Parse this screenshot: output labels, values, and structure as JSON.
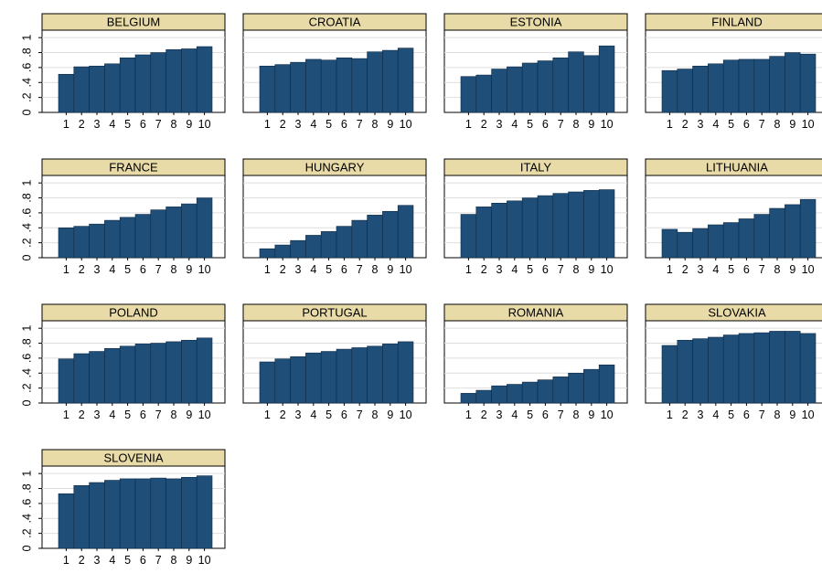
{
  "chart_data": {
    "type": "bar",
    "layout": "small-multiples grid, 4 columns",
    "categories": [
      "1",
      "2",
      "3",
      "4",
      "5",
      "6",
      "7",
      "8",
      "9",
      "10"
    ],
    "ylim": [
      0,
      1.1
    ],
    "yticks": [
      0,
      0.2,
      0.4,
      0.6,
      0.8,
      1
    ],
    "ytick_labels": [
      "0",
      ".2",
      ".4",
      ".6",
      ".8",
      "1"
    ],
    "grid": true,
    "colors": {
      "bar": "#1f4e79",
      "bar_edge": "#0e2a45",
      "panel_header": "#e8dba8",
      "grid": "#dedede"
    },
    "panels": [
      {
        "title": "BELGIUM",
        "values": [
          0.51,
          0.61,
          0.62,
          0.65,
          0.73,
          0.77,
          0.8,
          0.84,
          0.85,
          0.88
        ]
      },
      {
        "title": "CROATIA",
        "values": [
          0.62,
          0.64,
          0.67,
          0.71,
          0.7,
          0.73,
          0.72,
          0.81,
          0.83,
          0.86
        ]
      },
      {
        "title": "ESTONIA",
        "values": [
          0.48,
          0.5,
          0.58,
          0.61,
          0.66,
          0.69,
          0.73,
          0.81,
          0.76,
          0.89
        ]
      },
      {
        "title": "FINLAND",
        "values": [
          0.56,
          0.58,
          0.62,
          0.65,
          0.7,
          0.71,
          0.71,
          0.75,
          0.8,
          0.78
        ]
      },
      {
        "title": "FRANCE",
        "values": [
          0.4,
          0.42,
          0.45,
          0.5,
          0.54,
          0.58,
          0.64,
          0.68,
          0.72,
          0.8
        ]
      },
      {
        "title": "HUNGARY",
        "values": [
          0.12,
          0.17,
          0.23,
          0.3,
          0.35,
          0.42,
          0.5,
          0.57,
          0.62,
          0.7
        ]
      },
      {
        "title": "ITALY",
        "values": [
          0.58,
          0.68,
          0.73,
          0.76,
          0.8,
          0.83,
          0.86,
          0.88,
          0.9,
          0.91
        ]
      },
      {
        "title": "LITHUANIA",
        "values": [
          0.38,
          0.34,
          0.39,
          0.44,
          0.47,
          0.52,
          0.58,
          0.66,
          0.71,
          0.78
        ]
      },
      {
        "title": "POLAND",
        "values": [
          0.59,
          0.66,
          0.69,
          0.73,
          0.76,
          0.79,
          0.8,
          0.82,
          0.84,
          0.87
        ]
      },
      {
        "title": "PORTUGAL",
        "values": [
          0.55,
          0.59,
          0.62,
          0.67,
          0.69,
          0.72,
          0.74,
          0.76,
          0.79,
          0.82
        ]
      },
      {
        "title": "ROMANIA",
        "values": [
          0.13,
          0.17,
          0.23,
          0.25,
          0.28,
          0.31,
          0.35,
          0.4,
          0.45,
          0.51
        ]
      },
      {
        "title": "SLOVAKIA",
        "values": [
          0.77,
          0.84,
          0.86,
          0.88,
          0.91,
          0.93,
          0.94,
          0.96,
          0.96,
          0.93
        ]
      },
      {
        "title": "SLOVENIA",
        "values": [
          0.73,
          0.84,
          0.88,
          0.91,
          0.93,
          0.93,
          0.94,
          0.93,
          0.95,
          0.97
        ]
      }
    ]
  }
}
